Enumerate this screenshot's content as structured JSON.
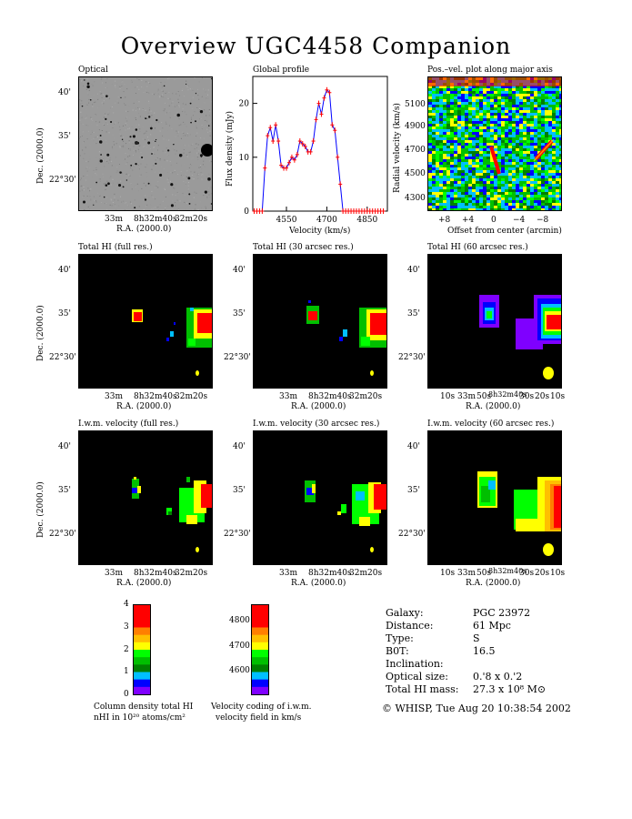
{
  "page_title": "Overview UGC4458 Companion",
  "panels": {
    "optical": "Optical",
    "global_profile": "Global profile",
    "pv": "Pos.–vel. plot along major axis",
    "total_full": "Total HI (full res.)",
    "total_30": "Total HI (30 arcsec res.)",
    "total_60": "Total HI (60 arcsec res.)",
    "vel_full": "I.w.m. velocity (full res.)",
    "vel_30": "I.w.m. velocity (30 arcsec res.)",
    "vel_60": "I.w.m. velocity (60 arcsec res.)"
  },
  "axes": {
    "dec_label": "Dec. (2000.0)",
    "ra_label": "R.A. (2000.0)",
    "dec_ticks": [
      "40'",
      "35'",
      "22°30'"
    ],
    "ra_ticks": [
      "33m",
      "8h32m40s",
      "32m20s"
    ],
    "ra_ticks_60": [
      "10s",
      "33m",
      "50s",
      "8h32m40s",
      "30s",
      "20s",
      "10s"
    ],
    "flux_label": "Flux density (mJy)",
    "velocity_label": "Velocity (km/s)",
    "radial_label": "Radial velocity (km/s)",
    "offset_label": "Offset from center (arcmin)",
    "pv_y_ticks": [
      "5100",
      "4900",
      "4700",
      "4500",
      "4300"
    ],
    "pv_x_ticks": [
      "+8",
      "+4",
      "0",
      "−4",
      "−8"
    ]
  },
  "chart_data": {
    "type": "line",
    "title": "Global profile",
    "xlabel": "Velocity (km/s)",
    "ylabel": "Flux density (mJy)",
    "xlim": [
      4425,
      4925
    ],
    "ylim": [
      0,
      25
    ],
    "xticks": [
      4550,
      4700,
      4850
    ],
    "yticks": [
      0,
      10,
      20
    ],
    "x": [
      4430,
      4440,
      4450,
      4460,
      4470,
      4480,
      4490,
      4500,
      4510,
      4520,
      4530,
      4540,
      4550,
      4560,
      4570,
      4580,
      4590,
      4600,
      4610,
      4620,
      4630,
      4640,
      4650,
      4660,
      4670,
      4680,
      4690,
      4700,
      4710,
      4720,
      4730,
      4740,
      4750,
      4760,
      4770,
      4780,
      4790,
      4800,
      4810,
      4820,
      4830,
      4840,
      4850,
      4860,
      4870,
      4880,
      4890,
      4900,
      4910
    ],
    "values": [
      0,
      0,
      0,
      0,
      8,
      14,
      15.5,
      13,
      16,
      13,
      8.5,
      8,
      8,
      9,
      10,
      9.5,
      10.5,
      13,
      12.5,
      12,
      11,
      11,
      13,
      17,
      20,
      18,
      21,
      22.5,
      22,
      16,
      15,
      10,
      5,
      0,
      0,
      0,
      0,
      0,
      0,
      0,
      0,
      0,
      0,
      0,
      0,
      0,
      0,
      0,
      0
    ]
  },
  "colorbar_density": {
    "ticks": [
      "4",
      "3",
      "2",
      "1",
      "0"
    ],
    "colors": [
      "#ff0000",
      "#ff0000",
      "#ff0000",
      "#ff7f00",
      "#ffbf00",
      "#ffff00",
      "#00ff00",
      "#00bf00",
      "#007f00",
      "#00bfff",
      "#0000ff",
      "#7f00ff"
    ],
    "caption1": "Column density total HI",
    "caption2": "nHI in 10²⁰ atoms/cm²"
  },
  "colorbar_velocity": {
    "ticks": [
      "4800",
      "4700",
      "4600"
    ],
    "colors": [
      "#ff0000",
      "#ff0000",
      "#ff0000",
      "#ff7f00",
      "#ffbf00",
      "#ffff00",
      "#00ff00",
      "#00bf00",
      "#007f00",
      "#00bfff",
      "#0000ff",
      "#7f00ff"
    ],
    "caption1": "Velocity coding of i.w.m.",
    "caption2": "velocity field in km/s"
  },
  "info": [
    {
      "key": "Galaxy:",
      "value": "PGC 23972"
    },
    {
      "key": "Distance:",
      "value": "61 Mpc"
    },
    {
      "key": "Type:",
      "value": "S"
    },
    {
      "key": "B0T:",
      "value": "16.5"
    },
    {
      "key": "Inclination:",
      "value": ""
    },
    {
      "key": "Optical size:",
      "value": "0.'8 x 0.'2"
    },
    {
      "key": "Total HI mass:",
      "value": "27.3 x 10⁸ M⊙"
    }
  ],
  "footer": "© WHISP, Tue Aug 20 10:38:54 2002"
}
